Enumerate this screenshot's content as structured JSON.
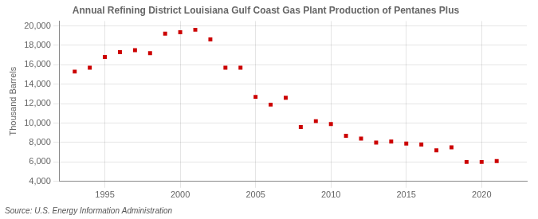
{
  "chart_data": {
    "type": "scatter",
    "title": "Annual Refining District Louisiana Gulf Coast Gas Plant Production of Pentanes Plus",
    "ylabel": "Thousand Barrels",
    "annotation": "Source: U.S. Energy Information Administration",
    "x": [
      1993,
      1994,
      1995,
      1996,
      1997,
      1998,
      1999,
      2000,
      2001,
      2002,
      2003,
      2004,
      2005,
      2006,
      2007,
      2008,
      2009,
      2010,
      2011,
      2012,
      2013,
      2014,
      2015,
      2016,
      2017,
      2018,
      2019,
      2020,
      2021
    ],
    "values": [
      15300,
      15700,
      16800,
      17300,
      17500,
      17200,
      19200,
      19350,
      19600,
      18600,
      15700,
      15700,
      12700,
      11900,
      12600,
      9600,
      10200,
      9900,
      8700,
      8400,
      8000,
      8100,
      7900,
      7800,
      7200,
      7500,
      6000,
      6000,
      6100
    ],
    "color": "#cc0000",
    "marker": "square",
    "xlim": [
      1992,
      2023
    ],
    "xticks": [
      1995,
      2000,
      2005,
      2010,
      2015,
      2020
    ],
    "ylim": [
      4000,
      20500
    ],
    "yticks": [
      {
        "value": 4000,
        "label": "4,000"
      },
      {
        "value": 6000,
        "label": "6,000"
      },
      {
        "value": 8000,
        "label": "8,000"
      },
      {
        "value": 10000,
        "label": "10,000"
      },
      {
        "value": 12000,
        "label": "12,000"
      },
      {
        "value": 14000,
        "label": "14,000"
      },
      {
        "value": 16000,
        "label": "16,000"
      },
      {
        "value": 18000,
        "label": "18,000"
      },
      {
        "value": 20000,
        "label": "20,000"
      }
    ],
    "grid": true
  }
}
